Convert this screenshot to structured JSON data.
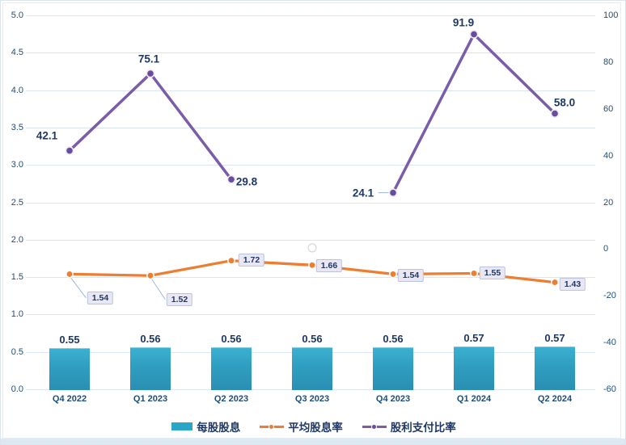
{
  "chart_data": {
    "type": "combo",
    "title": "",
    "categories": [
      "Q4 2022",
      "Q1 2023",
      "Q2 2023",
      "Q3 2023",
      "Q4 2023",
      "Q1 2024",
      "Q2 2024"
    ],
    "series": [
      {
        "name": "每股股息",
        "type": "bar",
        "axis": "left",
        "color": "#2aa6c6",
        "values": [
          0.55,
          0.56,
          0.56,
          0.56,
          0.56,
          0.57,
          0.57
        ],
        "labels": [
          "0.55",
          "0.56",
          "0.56",
          "0.56",
          "0.56",
          "0.57",
          "0.57"
        ]
      },
      {
        "name": "平均股息率",
        "type": "line",
        "axis": "left",
        "color": "#ED7D31",
        "label_style": "boxed",
        "values": [
          1.54,
          1.52,
          1.72,
          1.66,
          1.54,
          1.55,
          1.43
        ],
        "labels": [
          "1.54",
          "1.52",
          "1.72",
          "1.66",
          "1.54",
          "1.55",
          "1.43"
        ]
      },
      {
        "name": "股利支付比率",
        "type": "line",
        "axis": "right",
        "color": "#7a5ca8",
        "marker_color": "#6a4c9e",
        "values": [
          42.1,
          75.1,
          29.8,
          null,
          24.1,
          91.9,
          58.0
        ],
        "labels": [
          "42.1",
          "75.1",
          "29.8",
          null,
          "24.1",
          "91.9",
          "58.0"
        ],
        "gap_marker": {
          "index": 3,
          "value": 0.5,
          "style": "white-circle"
        }
      }
    ],
    "left_axis": {
      "min": 0,
      "max": 5,
      "tick_labels": [
        "5.0",
        "4.5",
        "4.0",
        "3.5",
        "3.0",
        "2.5",
        "2.0",
        "1.5",
        "1.0",
        "0.5",
        "0.0"
      ]
    },
    "right_axis": {
      "min": -60,
      "max": 100,
      "tick_labels": [
        "100",
        "80",
        "60",
        "40",
        "20",
        "0",
        "-20",
        "-40",
        "-60"
      ]
    },
    "grid": true,
    "legend_position": "bottom"
  },
  "colors": {
    "grid": "#d9e5f1",
    "axis_text": "#1f4e79",
    "data_label_text": "#1f3864",
    "bar_top": "#3cb0d2",
    "bar_bottom": "#2a8fb2",
    "orange_line": "#ED7D31",
    "purple_line": "#7a5ca8",
    "label_box_fill": "#e9e7f3",
    "label_box_border": "#bcc3de",
    "leader_line": "#9db8d9",
    "bottom_strip": "#dce9f5"
  }
}
